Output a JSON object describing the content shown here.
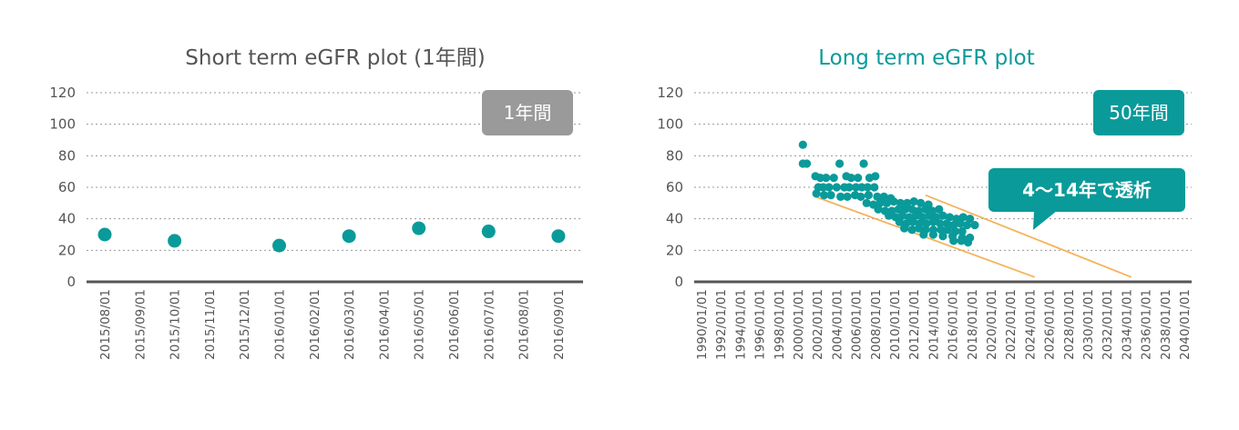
{
  "colors": {
    "teal": "#0a9a9a",
    "gray_badge": "#9a9a9a",
    "title_gray": "#555555",
    "axis": "#555555",
    "grid": "#9a9a9a",
    "trend_line": "#f5b25a"
  },
  "left": {
    "title": "Short term eGFR plot (1年間)",
    "badge": "1年間"
  },
  "right": {
    "title": "Long term eGFR plot",
    "badge": "50年間",
    "callout": "4～14年で透析"
  },
  "chart_data": [
    {
      "type": "scatter",
      "title": "Short term eGFR plot (1年間)",
      "xlabel": "",
      "ylabel": "",
      "ylim": [
        0,
        120
      ],
      "yticks": [
        0,
        20,
        40,
        60,
        80,
        100,
        120
      ],
      "grid": true,
      "x_categories": [
        "2015/08/01",
        "2015/09/01",
        "2015/10/01",
        "2015/11/01",
        "2015/12/01",
        "2016/01/01",
        "2016/02/01",
        "2016/03/01",
        "2016/04/01",
        "2016/05/01",
        "2016/06/01",
        "2016/07/01",
        "2016/08/01",
        "2016/09/01"
      ],
      "points": [
        {
          "x": "2015/08/01",
          "y": 30
        },
        {
          "x": "2015/10/01",
          "y": 26
        },
        {
          "x": "2016/01/01",
          "y": 23
        },
        {
          "x": "2016/03/01",
          "y": 29
        },
        {
          "x": "2016/05/01",
          "y": 34
        },
        {
          "x": "2016/07/01",
          "y": 32
        },
        {
          "x": "2016/09/01",
          "y": 29
        }
      ]
    },
    {
      "type": "scatter",
      "title": "Long term eGFR plot",
      "xlabel": "",
      "ylabel": "",
      "ylim": [
        0,
        120
      ],
      "yticks": [
        0,
        20,
        40,
        60,
        80,
        100,
        120
      ],
      "grid": true,
      "x_categories": [
        "1990/01/01",
        "1992/01/01",
        "1994/01/01",
        "1996/01/01",
        "1998/01/01",
        "2000/01/01",
        "2002/01/01",
        "2004/01/01",
        "2006/01/01",
        "2008/01/01",
        "2010/01/01",
        "2012/01/01",
        "2014/01/01",
        "2016/01/01",
        "2018/01/01",
        "2020/01/01",
        "2022/01/01",
        "2024/01/01",
        "2026/01/01",
        "2028/01/01",
        "2030/01/01",
        "2032/01/01",
        "2034/01/01",
        "2036/01/01",
        "2038/01/01",
        "2040/01/01"
      ],
      "x_year_range": [
        1990,
        2040
      ],
      "points": [
        [
          2000.5,
          87
        ],
        [
          2000.5,
          75
        ],
        [
          2000.9,
          75
        ],
        [
          2001.8,
          67
        ],
        [
          2002.3,
          66
        ],
        [
          2002.9,
          66
        ],
        [
          2003.7,
          66
        ],
        [
          2004.3,
          75
        ],
        [
          2005.0,
          67
        ],
        [
          2005.5,
          66
        ],
        [
          2006.2,
          66
        ],
        [
          2006.8,
          75
        ],
        [
          2007.4,
          66
        ],
        [
          2008.0,
          67
        ],
        [
          2002.1,
          60
        ],
        [
          2002.6,
          60
        ],
        [
          2003.2,
          60
        ],
        [
          2004.0,
          60
        ],
        [
          2004.8,
          60
        ],
        [
          2005.3,
          60
        ],
        [
          2006.0,
          60
        ],
        [
          2006.6,
          60
        ],
        [
          2007.2,
          60
        ],
        [
          2007.9,
          60
        ],
        [
          2001.9,
          56
        ],
        [
          2002.7,
          55
        ],
        [
          2003.4,
          55
        ],
        [
          2004.4,
          54
        ],
        [
          2005.1,
          54
        ],
        [
          2005.9,
          55
        ],
        [
          2006.5,
          54
        ],
        [
          2007.3,
          55
        ],
        [
          2008.2,
          54
        ],
        [
          2008.9,
          54
        ],
        [
          2009.6,
          53
        ],
        [
          2007.1,
          50
        ],
        [
          2007.8,
          49
        ],
        [
          2008.5,
          50
        ],
        [
          2009.2,
          50
        ],
        [
          2009.9,
          51
        ],
        [
          2010.6,
          50
        ],
        [
          2011.3,
          50
        ],
        [
          2012.0,
          51
        ],
        [
          2012.7,
          50
        ],
        [
          2013.5,
          49
        ],
        [
          2008.3,
          46
        ],
        [
          2009.0,
          45
        ],
        [
          2009.7,
          45
        ],
        [
          2010.4,
          46
        ],
        [
          2011.1,
          46
        ],
        [
          2011.8,
          46
        ],
        [
          2012.5,
          45
        ],
        [
          2013.2,
          46
        ],
        [
          2013.9,
          45
        ],
        [
          2014.6,
          46
        ],
        [
          2009.4,
          42
        ],
        [
          2010.1,
          41
        ],
        [
          2010.8,
          42
        ],
        [
          2011.5,
          41
        ],
        [
          2012.2,
          42
        ],
        [
          2012.9,
          41
        ],
        [
          2013.6,
          42
        ],
        [
          2014.3,
          41
        ],
        [
          2015.0,
          42
        ],
        [
          2015.7,
          41
        ],
        [
          2016.4,
          40
        ],
        [
          2017.1,
          41
        ],
        [
          2017.8,
          40
        ],
        [
          2010.5,
          38
        ],
        [
          2011.2,
          37
        ],
        [
          2011.9,
          38
        ],
        [
          2012.6,
          37
        ],
        [
          2013.3,
          37
        ],
        [
          2014.0,
          38
        ],
        [
          2014.7,
          37
        ],
        [
          2015.4,
          37
        ],
        [
          2016.1,
          36
        ],
        [
          2016.8,
          37
        ],
        [
          2017.5,
          36
        ],
        [
          2018.3,
          36
        ],
        [
          2011.0,
          34
        ],
        [
          2011.8,
          33
        ],
        [
          2012.5,
          34
        ],
        [
          2013.2,
          33
        ],
        [
          2014.0,
          33
        ],
        [
          2014.8,
          33
        ],
        [
          2015.5,
          33
        ],
        [
          2016.3,
          32
        ],
        [
          2017.0,
          32
        ],
        [
          2013.0,
          30
        ],
        [
          2014.0,
          30
        ],
        [
          2015.0,
          29
        ],
        [
          2016.0,
          29
        ],
        [
          2017.0,
          28
        ],
        [
          2017.8,
          28
        ],
        [
          2016.1,
          26
        ],
        [
          2016.9,
          26
        ],
        [
          2017.6,
          25
        ]
      ],
      "trend_lines": [
        {
          "from": [
            2001.8,
            54
          ],
          "to": [
            2024.5,
            3
          ]
        },
        {
          "from": [
            2013.2,
            55
          ],
          "to": [
            2034.5,
            3
          ]
        }
      ]
    }
  ]
}
